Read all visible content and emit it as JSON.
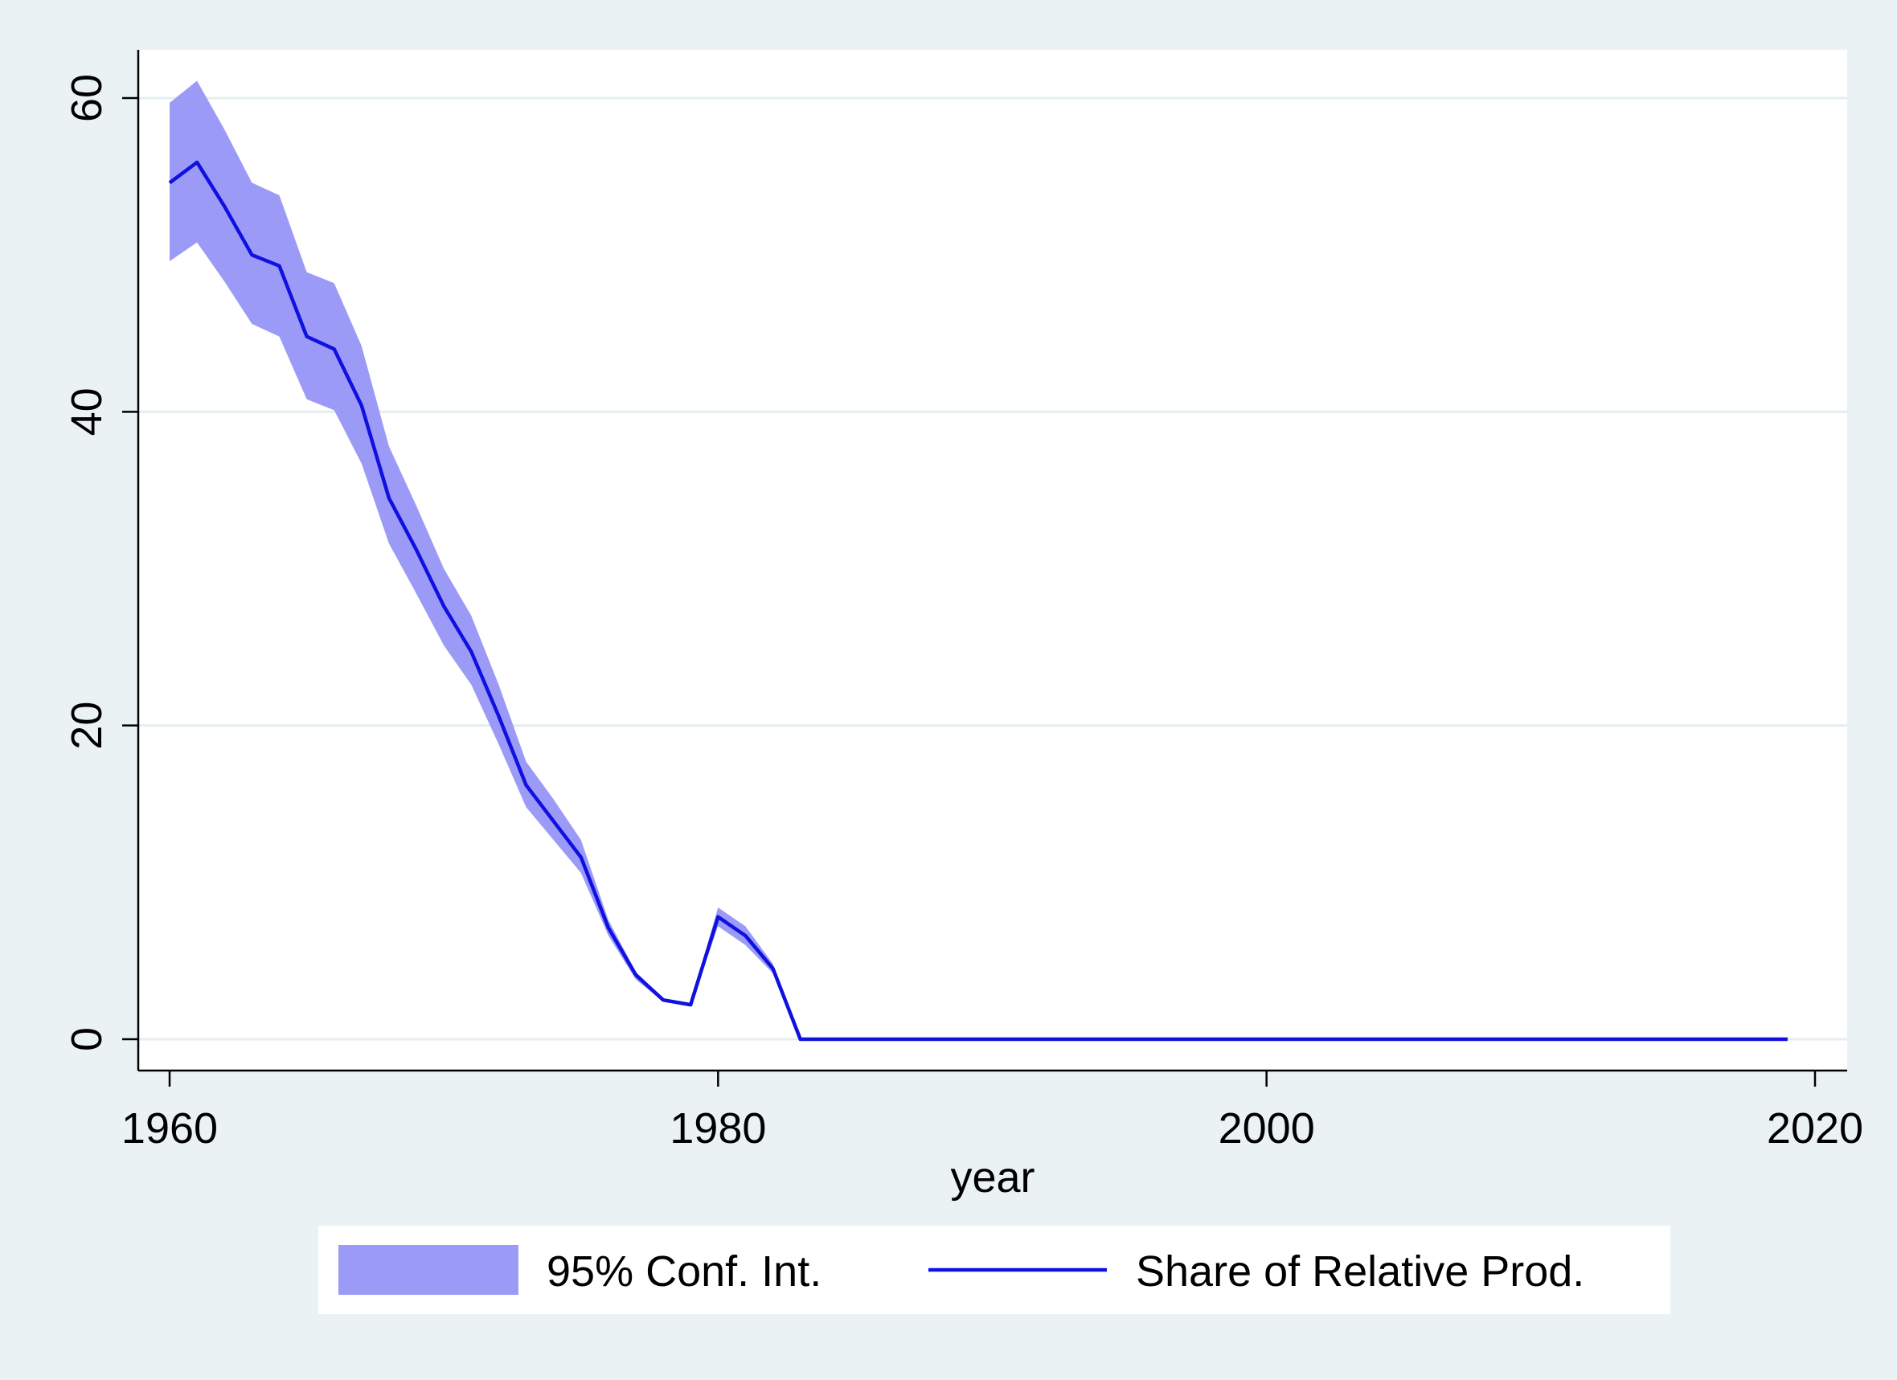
{
  "chart_data": {
    "type": "line",
    "title": "",
    "xlabel": "year",
    "ylabel": "",
    "xlim": [
      1960,
      2020
    ],
    "ylim": [
      0,
      60
    ],
    "x_ticks": [
      "1960",
      "1980",
      "2000",
      "2020"
    ],
    "y_ticks": [
      "0",
      "20",
      "40",
      "60"
    ],
    "grid": "horizontal",
    "legend_position": "bottom",
    "colors": {
      "band": "#9b9bf7",
      "line": "#1010e0",
      "plot_bg": "#ffffff",
      "outer_bg": "#eaf2f3",
      "grid": "#e4eef0"
    },
    "legend": {
      "band_label": "95% Conf. Int.",
      "line_label": "Share of Relative Prod."
    },
    "x": [
      1960,
      1961,
      1962,
      1963,
      1964,
      1965,
      1966,
      1967,
      1968,
      1969,
      1970,
      1971,
      1972,
      1973,
      1974,
      1975,
      1976,
      1977,
      1978,
      1979,
      1980,
      1981,
      1982,
      1983,
      1984,
      1985,
      1986,
      1987,
      1988,
      1989,
      1990,
      1991,
      1992,
      1993,
      1994,
      1995,
      1996,
      1997,
      1998,
      1999,
      2000,
      2001,
      2002,
      2003,
      2004,
      2005,
      2006,
      2007,
      2008,
      2009,
      2010,
      2011,
      2012,
      2013,
      2014,
      2015,
      2016,
      2017,
      2018,
      2019
    ],
    "series": [
      {
        "name": "Share of Relative Prod.",
        "values": [
          54.6,
          55.9,
          53.1,
          50.0,
          49.3,
          44.8,
          44.0,
          40.4,
          34.5,
          31.2,
          27.6,
          24.7,
          20.6,
          16.2,
          13.9,
          11.6,
          7.1,
          4.1,
          2.5,
          2.2,
          7.8,
          6.6,
          4.5,
          0,
          0,
          0,
          0,
          0,
          0,
          0,
          0,
          0,
          0,
          0,
          0,
          0,
          0,
          0,
          0,
          0,
          0,
          0,
          0,
          0,
          0,
          0,
          0,
          0,
          0,
          0,
          0,
          0,
          0,
          0,
          0,
          0,
          0,
          0,
          0,
          0
        ]
      }
    ],
    "ci_band": {
      "name": "95% Conf. Int.",
      "upper": [
        59.7,
        61.1,
        58.0,
        54.6,
        53.8,
        48.9,
        48.2,
        44.2,
        37.8,
        34.0,
        30.0,
        27.0,
        22.6,
        17.7,
        15.3,
        12.7,
        7.6,
        4.3,
        2.6,
        2.3,
        8.4,
        7.2,
        4.8,
        0,
        0,
        0,
        0,
        0,
        0,
        0,
        0,
        0,
        0,
        0,
        0,
        0,
        0,
        0,
        0,
        0,
        0,
        0,
        0,
        0,
        0,
        0,
        0,
        0,
        0,
        0,
        0,
        0,
        0,
        0,
        0,
        0,
        0,
        0,
        0,
        0
      ],
      "lower": [
        49.6,
        50.8,
        48.3,
        45.6,
        44.8,
        40.8,
        40.1,
        36.7,
        31.6,
        28.4,
        25.1,
        22.6,
        18.8,
        14.8,
        12.7,
        10.6,
        6.6,
        3.8,
        2.4,
        2.1,
        7.2,
        6.0,
        4.2,
        0,
        0,
        0,
        0,
        0,
        0,
        0,
        0,
        0,
        0,
        0,
        0,
        0,
        0,
        0,
        0,
        0,
        0,
        0,
        0,
        0,
        0,
        0,
        0,
        0,
        0,
        0,
        0,
        0,
        0,
        0,
        0,
        0,
        0,
        0,
        0,
        0
      ]
    }
  }
}
